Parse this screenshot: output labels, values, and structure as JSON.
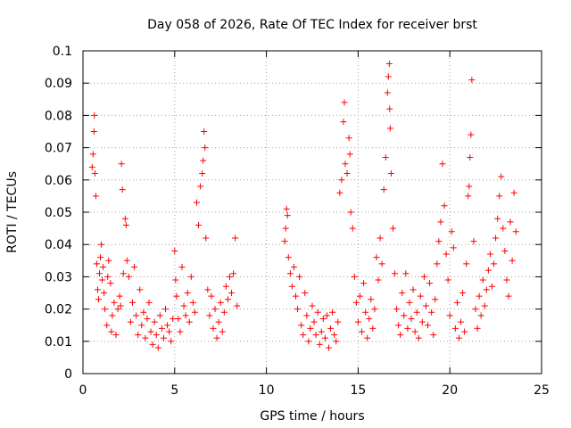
{
  "chart_data": {
    "type": "scatter",
    "title": "Day 058 of 2026, Rate Of TEC Index for receiver brst",
    "xlabel": "GPS time / hours",
    "ylabel": "ROTI / TECUs",
    "xlim": [
      0,
      25
    ],
    "ylim": [
      0,
      0.1
    ],
    "xticks": [
      "0",
      "5",
      "10",
      "15",
      "20",
      "25"
    ],
    "yticks": [
      "0",
      "0.01",
      "0.02",
      "0.03",
      "0.04",
      "0.05",
      "0.06",
      "0.07",
      "0.08",
      "0.09",
      "0.1"
    ],
    "grid": true,
    "marker": "+",
    "color": "#ff0000",
    "series": [
      {
        "points": [
          [
            0.5,
            0.064
          ],
          [
            0.55,
            0.068
          ],
          [
            0.6,
            0.075
          ],
          [
            0.62,
            0.08
          ],
          [
            0.65,
            0.062
          ],
          [
            0.7,
            0.055
          ],
          [
            0.75,
            0.034
          ],
          [
            0.8,
            0.026
          ],
          [
            0.85,
            0.023
          ],
          [
            0.9,
            0.031
          ],
          [
            0.95,
            0.036
          ],
          [
            1.0,
            0.04
          ],
          [
            1.05,
            0.029
          ],
          [
            1.1,
            0.033
          ],
          [
            1.15,
            0.025
          ],
          [
            1.2,
            0.02
          ],
          [
            1.3,
            0.015
          ],
          [
            1.35,
            0.03
          ],
          [
            1.4,
            0.035
          ],
          [
            1.5,
            0.028
          ],
          [
            1.55,
            0.013
          ],
          [
            1.6,
            0.018
          ],
          [
            1.7,
            0.022
          ],
          [
            1.8,
            0.012
          ],
          [
            1.9,
            0.02
          ],
          [
            2.0,
            0.024
          ],
          [
            2.05,
            0.021
          ],
          [
            2.1,
            0.065
          ],
          [
            2.15,
            0.057
          ],
          [
            2.2,
            0.031
          ],
          [
            2.3,
            0.048
          ],
          [
            2.35,
            0.046
          ],
          [
            2.4,
            0.035
          ],
          [
            2.5,
            0.03
          ],
          [
            2.6,
            0.016
          ],
          [
            2.7,
            0.022
          ],
          [
            2.8,
            0.033
          ],
          [
            2.9,
            0.018
          ],
          [
            3.0,
            0.012
          ],
          [
            3.1,
            0.026
          ],
          [
            3.2,
            0.015
          ],
          [
            3.3,
            0.019
          ],
          [
            3.4,
            0.011
          ],
          [
            3.5,
            0.017
          ],
          [
            3.6,
            0.022
          ],
          [
            3.7,
            0.013
          ],
          [
            3.8,
            0.009
          ],
          [
            3.9,
            0.016
          ],
          [
            4.0,
            0.012
          ],
          [
            4.1,
            0.008
          ],
          [
            4.2,
            0.018
          ],
          [
            4.3,
            0.014
          ],
          [
            4.4,
            0.011
          ],
          [
            4.5,
            0.02
          ],
          [
            4.6,
            0.015
          ],
          [
            4.7,
            0.013
          ],
          [
            4.8,
            0.01
          ],
          [
            4.9,
            0.017
          ],
          [
            5.0,
            0.038
          ],
          [
            5.05,
            0.029
          ],
          [
            5.1,
            0.024
          ],
          [
            5.2,
            0.017
          ],
          [
            5.3,
            0.013
          ],
          [
            5.4,
            0.033
          ],
          [
            5.5,
            0.021
          ],
          [
            5.6,
            0.018
          ],
          [
            5.7,
            0.025
          ],
          [
            5.8,
            0.016
          ],
          [
            5.9,
            0.03
          ],
          [
            6.0,
            0.022
          ],
          [
            6.1,
            0.019
          ],
          [
            6.2,
            0.053
          ],
          [
            6.3,
            0.046
          ],
          [
            6.4,
            0.058
          ],
          [
            6.5,
            0.062
          ],
          [
            6.55,
            0.066
          ],
          [
            6.6,
            0.075
          ],
          [
            6.65,
            0.07
          ],
          [
            6.7,
            0.042
          ],
          [
            6.8,
            0.026
          ],
          [
            6.9,
            0.018
          ],
          [
            7.0,
            0.024
          ],
          [
            7.1,
            0.014
          ],
          [
            7.2,
            0.02
          ],
          [
            7.3,
            0.011
          ],
          [
            7.4,
            0.016
          ],
          [
            7.5,
            0.022
          ],
          [
            7.6,
            0.013
          ],
          [
            7.7,
            0.019
          ],
          [
            7.8,
            0.027
          ],
          [
            7.9,
            0.023
          ],
          [
            8.0,
            0.03
          ],
          [
            8.1,
            0.025
          ],
          [
            8.2,
            0.031
          ],
          [
            8.3,
            0.042
          ],
          [
            8.4,
            0.021
          ],
          [
            11.0,
            0.041
          ],
          [
            11.05,
            0.045
          ],
          [
            11.1,
            0.051
          ],
          [
            11.15,
            0.049
          ],
          [
            11.2,
            0.036
          ],
          [
            11.3,
            0.031
          ],
          [
            11.4,
            0.027
          ],
          [
            11.5,
            0.033
          ],
          [
            11.6,
            0.024
          ],
          [
            11.7,
            0.02
          ],
          [
            11.8,
            0.03
          ],
          [
            11.9,
            0.015
          ],
          [
            12.0,
            0.012
          ],
          [
            12.1,
            0.025
          ],
          [
            12.2,
            0.018
          ],
          [
            12.3,
            0.01
          ],
          [
            12.4,
            0.014
          ],
          [
            12.5,
            0.021
          ],
          [
            12.6,
            0.016
          ],
          [
            12.7,
            0.012
          ],
          [
            12.8,
            0.019
          ],
          [
            12.9,
            0.009
          ],
          [
            13.0,
            0.013
          ],
          [
            13.1,
            0.017
          ],
          [
            13.2,
            0.011
          ],
          [
            13.3,
            0.018
          ],
          [
            13.4,
            0.008
          ],
          [
            13.5,
            0.014
          ],
          [
            13.6,
            0.019
          ],
          [
            13.7,
            0.012
          ],
          [
            13.8,
            0.01
          ],
          [
            13.9,
            0.016
          ],
          [
            14.0,
            0.056
          ],
          [
            14.1,
            0.06
          ],
          [
            14.2,
            0.078
          ],
          [
            14.25,
            0.084
          ],
          [
            14.3,
            0.065
          ],
          [
            14.4,
            0.062
          ],
          [
            14.5,
            0.073
          ],
          [
            14.55,
            0.068
          ],
          [
            14.6,
            0.05
          ],
          [
            14.7,
            0.045
          ],
          [
            14.8,
            0.03
          ],
          [
            14.9,
            0.022
          ],
          [
            15.0,
            0.016
          ],
          [
            15.1,
            0.024
          ],
          [
            15.2,
            0.013
          ],
          [
            15.3,
            0.028
          ],
          [
            15.4,
            0.019
          ],
          [
            15.5,
            0.011
          ],
          [
            15.6,
            0.017
          ],
          [
            15.7,
            0.023
          ],
          [
            15.8,
            0.014
          ],
          [
            15.9,
            0.02
          ],
          [
            16.0,
            0.036
          ],
          [
            16.1,
            0.029
          ],
          [
            16.2,
            0.042
          ],
          [
            16.3,
            0.034
          ],
          [
            16.4,
            0.057
          ],
          [
            16.5,
            0.067
          ],
          [
            16.6,
            0.087
          ],
          [
            16.65,
            0.092
          ],
          [
            16.7,
            0.096
          ],
          [
            16.72,
            0.082
          ],
          [
            16.75,
            0.076
          ],
          [
            16.8,
            0.062
          ],
          [
            16.9,
            0.045
          ],
          [
            17.0,
            0.031
          ],
          [
            17.1,
            0.02
          ],
          [
            17.2,
            0.015
          ],
          [
            17.3,
            0.012
          ],
          [
            17.4,
            0.025
          ],
          [
            17.5,
            0.018
          ],
          [
            17.6,
            0.031
          ],
          [
            17.7,
            0.014
          ],
          [
            17.8,
            0.022
          ],
          [
            17.9,
            0.017
          ],
          [
            18.0,
            0.026
          ],
          [
            18.1,
            0.013
          ],
          [
            18.2,
            0.019
          ],
          [
            18.3,
            0.011
          ],
          [
            18.4,
            0.024
          ],
          [
            18.5,
            0.016
          ],
          [
            18.6,
            0.03
          ],
          [
            18.7,
            0.021
          ],
          [
            18.8,
            0.015
          ],
          [
            18.9,
            0.028
          ],
          [
            19.0,
            0.019
          ],
          [
            19.1,
            0.012
          ],
          [
            19.2,
            0.023
          ],
          [
            19.3,
            0.034
          ],
          [
            19.4,
            0.041
          ],
          [
            19.5,
            0.047
          ],
          [
            19.6,
            0.065
          ],
          [
            19.7,
            0.052
          ],
          [
            19.8,
            0.037
          ],
          [
            19.9,
            0.029
          ],
          [
            20.0,
            0.018
          ],
          [
            20.1,
            0.044
          ],
          [
            20.2,
            0.039
          ],
          [
            20.3,
            0.014
          ],
          [
            20.4,
            0.022
          ],
          [
            20.5,
            0.011
          ],
          [
            20.6,
            0.016
          ],
          [
            20.7,
            0.025
          ],
          [
            20.8,
            0.013
          ],
          [
            20.9,
            0.034
          ],
          [
            21.0,
            0.055
          ],
          [
            21.05,
            0.058
          ],
          [
            21.1,
            0.067
          ],
          [
            21.15,
            0.074
          ],
          [
            21.2,
            0.091
          ],
          [
            21.3,
            0.041
          ],
          [
            21.4,
            0.02
          ],
          [
            21.5,
            0.014
          ],
          [
            21.6,
            0.024
          ],
          [
            21.7,
            0.018
          ],
          [
            21.8,
            0.029
          ],
          [
            21.9,
            0.021
          ],
          [
            22.0,
            0.026
          ],
          [
            22.1,
            0.032
          ],
          [
            22.2,
            0.037
          ],
          [
            22.3,
            0.027
          ],
          [
            22.4,
            0.034
          ],
          [
            22.5,
            0.042
          ],
          [
            22.6,
            0.048
          ],
          [
            22.7,
            0.055
          ],
          [
            22.8,
            0.061
          ],
          [
            22.9,
            0.045
          ],
          [
            23.0,
            0.038
          ],
          [
            23.1,
            0.029
          ],
          [
            23.2,
            0.024
          ],
          [
            23.3,
            0.047
          ],
          [
            23.4,
            0.035
          ],
          [
            23.5,
            0.056
          ],
          [
            23.6,
            0.044
          ]
        ]
      }
    ]
  }
}
